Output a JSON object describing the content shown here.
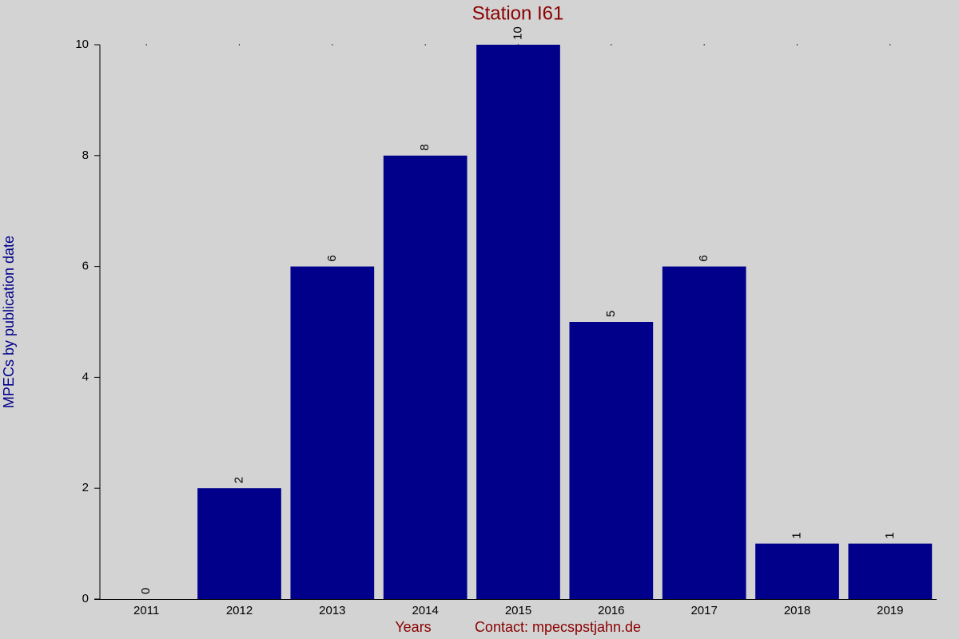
{
  "chart_data": {
    "type": "bar",
    "title": "Station I61",
    "y_label": "MPECs by publication date",
    "x_label": "Years",
    "footer": "Contact: mpecspstjahn.de",
    "categories": [
      "2011",
      "2012",
      "2013",
      "2014",
      "2015",
      "2016",
      "2017",
      "2018",
      "2019"
    ],
    "values": [
      0,
      2,
      6,
      8,
      10,
      5,
      6,
      1,
      1
    ],
    "color": "#00008b",
    "ylim": [
      0,
      10
    ],
    "yticks": [
      0,
      2,
      4,
      6,
      8,
      10
    ],
    "grid": false
  }
}
